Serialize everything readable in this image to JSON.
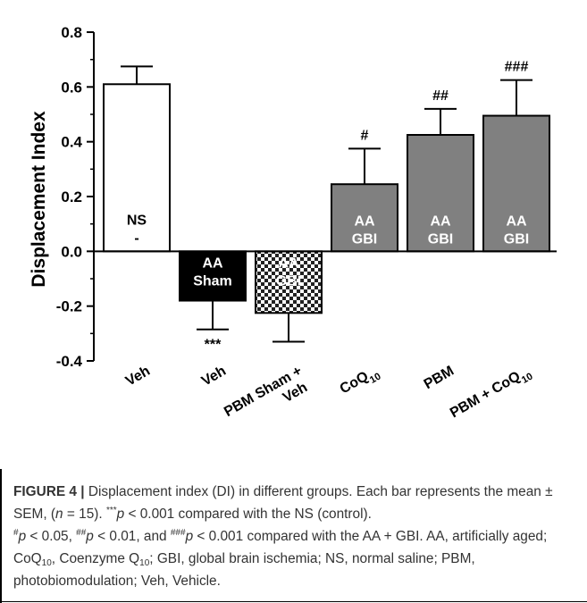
{
  "chart_data": {
    "type": "bar",
    "ylabel": "Displacement Index",
    "ylim": [
      -0.4,
      0.8
    ],
    "y_ticks": [
      "0.8",
      "0.6",
      "0.4",
      "0.2",
      "0.0",
      "-0.2",
      "-0.4"
    ],
    "grid": false,
    "categories": [
      "Veh",
      "Veh",
      "PBM Sham + Veh",
      "CoQ10",
      "PBM",
      "PBM + CoQ10"
    ],
    "bars": [
      {
        "x_label": "Veh",
        "value": 0.61,
        "sem": 0.065,
        "fill": "#ffffff",
        "pattern": "none",
        "label_line1": "NS",
        "label_line2": "-",
        "label_color": "#000000",
        "annotation": ""
      },
      {
        "x_label": "Veh",
        "value": -0.18,
        "sem": 0.105,
        "fill": "#000000",
        "pattern": "none",
        "label_line1": "AA",
        "label_line2": "Sham",
        "label_color": "#ffffff",
        "annotation": "***"
      },
      {
        "x_label": "PBM Sham + Veh",
        "value": -0.225,
        "sem": 0.105,
        "fill": "#3a3a3a",
        "pattern": "checker",
        "label_line1": "AA",
        "label_line2": "GBI",
        "label_color": "#ffffff",
        "annotation": ""
      },
      {
        "x_label": "CoQ10",
        "value": 0.245,
        "sem": 0.13,
        "fill": "#808080",
        "pattern": "none",
        "label_line1": "AA",
        "label_line2": "GBI",
        "label_color": "#ffffff",
        "annotation": "#"
      },
      {
        "x_label": "PBM",
        "value": 0.425,
        "sem": 0.095,
        "fill": "#808080",
        "pattern": "none",
        "label_line1": "AA",
        "label_line2": "GBI",
        "label_color": "#ffffff",
        "annotation": "##"
      },
      {
        "x_label": "PBM + CoQ10",
        "value": 0.495,
        "sem": 0.13,
        "fill": "#808080",
        "pattern": "none",
        "label_line1": "AA",
        "label_line2": "GBI",
        "label_color": "#ffffff",
        "annotation": "###"
      }
    ]
  },
  "x_tick_labels": [
    {
      "lines": [
        "Veh"
      ]
    },
    {
      "lines": [
        "Veh"
      ]
    },
    {
      "lines": [
        "PBM Sham +",
        "Veh"
      ]
    },
    {
      "lines": [
        "CoQ",
        "10"
      ]
    },
    {
      "lines": [
        "PBM"
      ]
    },
    {
      "lines": [
        "PBM + CoQ",
        "10"
      ]
    }
  ],
  "caption": {
    "figure_label": "FIGURE 4 |",
    "sentence1": " Displacement index (DI) in different groups. Each bar represents the mean ± SEM, (",
    "n_var": "n",
    "n_value": " = 15). ",
    "stars": "***",
    "p1_var": "p",
    "p1_text": " < 0.001 compared with the NS (control).",
    "hash1": "#",
    "p2_var": "p",
    "p2_text": " < 0.05, ",
    "hash2": "##",
    "p3_var": "p",
    "p3_text": " < 0.01, and ",
    "hash3": "###",
    "p4_var": "p",
    "p4_text": " < 0.001 compared with the AA + GBI. AA, artificially aged; CoQ",
    "sub1": "10",
    "abbrev2": ", Coenzyme Q",
    "sub2": "10",
    "abbrev3": "; GBI, global brain ischemia; NS, normal saline; PBM, photobiomodulation; Veh, Vehicle."
  }
}
